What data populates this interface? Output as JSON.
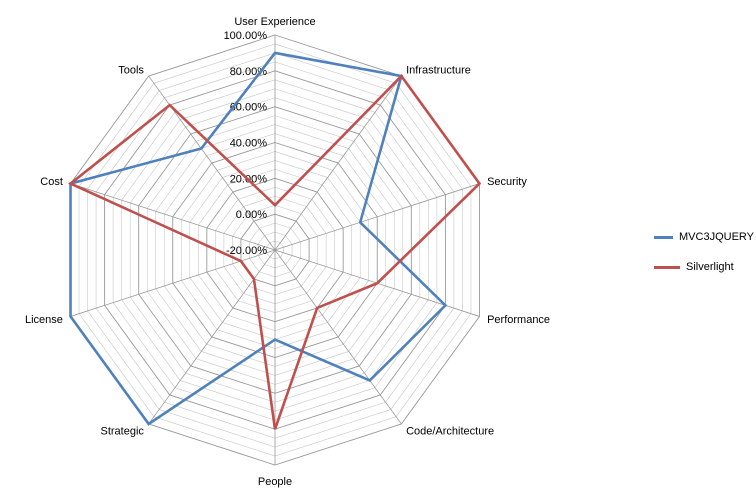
{
  "chart_data": {
    "type": "radar",
    "categories": [
      "User Experience",
      "Infrastructure",
      "Security",
      "Performance",
      "Code/Architecture",
      "People",
      "Strategic",
      "License",
      "Cost",
      "Tools"
    ],
    "rlim": [
      -20,
      100
    ],
    "r_major_step": 20,
    "r_minor_step": 5,
    "tick_labels": [
      "-20.00%",
      "0.00%",
      "20.00%",
      "40.00%",
      "60.00%",
      "80.00%",
      "100.00%"
    ],
    "grid": true,
    "legend_position": "right",
    "series": [
      {
        "name": "MVC3JQUERY",
        "color": "#4f81bd",
        "values": [
          90,
          100,
          30,
          80,
          70,
          30,
          100,
          100,
          100,
          50
        ]
      },
      {
        "name": "Silverlight",
        "color": "#c0504d",
        "values": [
          5,
          100,
          100,
          40,
          20,
          80,
          0,
          0,
          100,
          80
        ]
      }
    ]
  }
}
